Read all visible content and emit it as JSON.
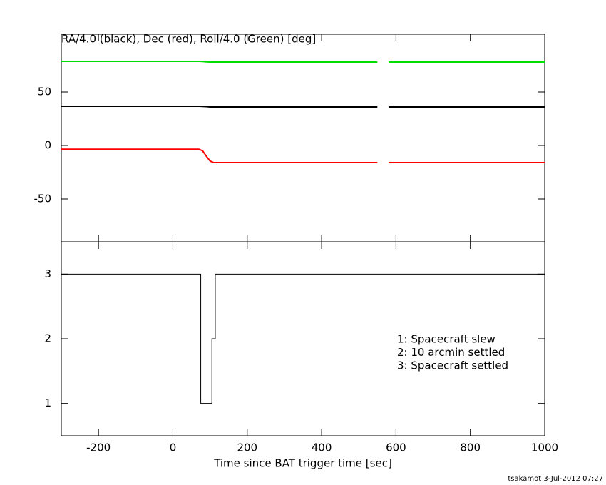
{
  "chart_data": [
    {
      "type": "line",
      "title": "RA/4.0 (black), Dec (red), Roll/4.0 (Green) [deg]",
      "x": [
        -300,
        -70,
        70,
        80,
        90,
        100,
        110,
        350,
        550,
        565,
        580,
        1000
      ],
      "series": [
        {
          "color": "#000000",
          "values": [
            36.7,
            36.7,
            36.7,
            36.5,
            36.3,
            36,
            36,
            36,
            36,
            null,
            36,
            36
          ]
        },
        {
          "color": "#ff0000",
          "values": [
            -3.5,
            -3.5,
            -3.5,
            -5,
            -10,
            -14.5,
            -16,
            -16,
            -16,
            null,
            -16,
            -16
          ]
        },
        {
          "color": "#00dd00",
          "values": [
            78.7,
            78.7,
            78.7,
            78.5,
            78.2,
            78,
            78,
            78,
            78,
            null,
            78,
            78
          ]
        }
      ],
      "xlim": [
        -300,
        1000
      ],
      "xticks": [
        -200,
        0,
        200,
        400,
        600,
        800,
        1000
      ],
      "ylim": [
        -90,
        104
      ],
      "yticks": [
        -50,
        0,
        50
      ]
    },
    {
      "type": "line",
      "x": [
        -300,
        75,
        75,
        105,
        105,
        114,
        114,
        1000
      ],
      "values": [
        3,
        3,
        1,
        1,
        2,
        2,
        3,
        3
      ],
      "color": "#000000",
      "xlim": [
        -300,
        1000
      ],
      "xticks": [
        -200,
        0,
        200,
        400,
        600,
        800,
        1000
      ],
      "ylim": [
        0.5,
        3.5
      ],
      "yticks": [
        1,
        2,
        3
      ],
      "xlabel": "Time since BAT trigger time [sec]",
      "annotations": [
        "1: Spacecraft slew",
        "2: 10 arcmin settled",
        "3: Spacecraft settled"
      ]
    }
  ],
  "footer": "tsakamot  3-Jul-2012 07:27"
}
